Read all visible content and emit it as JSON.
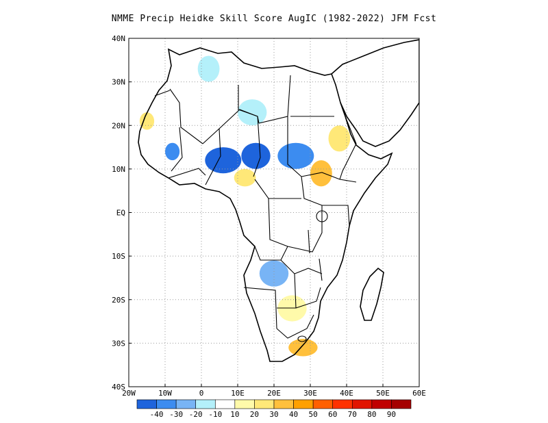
{
  "title": "NMME Precip Heidke Skill Score AugIC (1982-2022) JFM Fcst",
  "map": {
    "lon_range": [
      -20,
      60
    ],
    "lat_range": [
      -40,
      40
    ],
    "lon_ticks": [
      {
        "v": -20,
        "label": "20W"
      },
      {
        "v": -10,
        "label": "10W"
      },
      {
        "v": 0,
        "label": "0"
      },
      {
        "v": 10,
        "label": "10E"
      },
      {
        "v": 20,
        "label": "20E"
      },
      {
        "v": 30,
        "label": "30E"
      },
      {
        "v": 40,
        "label": "40E"
      },
      {
        "v": 50,
        "label": "50E"
      },
      {
        "v": 60,
        "label": "60E"
      }
    ],
    "lat_ticks": [
      {
        "v": 40,
        "label": "40N"
      },
      {
        "v": 30,
        "label": "30N"
      },
      {
        "v": 20,
        "label": "20N"
      },
      {
        "v": 10,
        "label": "10N"
      },
      {
        "v": 0,
        "label": "EQ"
      },
      {
        "v": -10,
        "label": "10S"
      },
      {
        "v": -20,
        "label": "20S"
      },
      {
        "v": -30,
        "label": "30S"
      },
      {
        "v": -40,
        "label": "40S"
      }
    ],
    "grid": true,
    "skill_regions": [
      {
        "lon": 6,
        "lat": 12,
        "rx": 5,
        "ry": 3,
        "level": -40
      },
      {
        "lon": 15,
        "lat": 13,
        "rx": 4,
        "ry": 3,
        "level": -40
      },
      {
        "lon": 26,
        "lat": 13,
        "rx": 5,
        "ry": 3,
        "level": -30
      },
      {
        "lon": -8,
        "lat": 14,
        "rx": 2,
        "ry": 2,
        "level": -30
      },
      {
        "lon": 14,
        "lat": 23,
        "rx": 4,
        "ry": 3,
        "level": -10
      },
      {
        "lon": 2,
        "lat": 33,
        "rx": 3,
        "ry": 3,
        "level": -10
      },
      {
        "lon": 20,
        "lat": -14,
        "rx": 4,
        "ry": 3,
        "level": -20
      },
      {
        "lon": 33,
        "lat": 9,
        "rx": 3,
        "ry": 3,
        "level": 30
      },
      {
        "lon": 28,
        "lat": -31,
        "rx": 4,
        "ry": 2,
        "level": 30
      },
      {
        "lon": 38,
        "lat": 17,
        "rx": 3,
        "ry": 3,
        "level": 20
      },
      {
        "lon": 12,
        "lat": 8,
        "rx": 3,
        "ry": 2,
        "level": 20
      },
      {
        "lon": 25,
        "lat": -22,
        "rx": 4,
        "ry": 3,
        "level": 10
      },
      {
        "lon": -15,
        "lat": 21,
        "rx": 2,
        "ry": 2,
        "level": 20
      }
    ]
  },
  "colorbar": {
    "colors": [
      "#1e64dc",
      "#3c8cf0",
      "#78b4f5",
      "#b4f0fa",
      "#ffffff",
      "#fffaaa",
      "#ffe878",
      "#ffc03c",
      "#ffa000",
      "#ff6000",
      "#ff3200",
      "#e11400",
      "#c00000",
      "#a50000"
    ],
    "labels": [
      "-40",
      "-30",
      "-20",
      "-10",
      "10",
      "20",
      "30",
      "40",
      "50",
      "60",
      "70",
      "80",
      "90"
    ]
  }
}
